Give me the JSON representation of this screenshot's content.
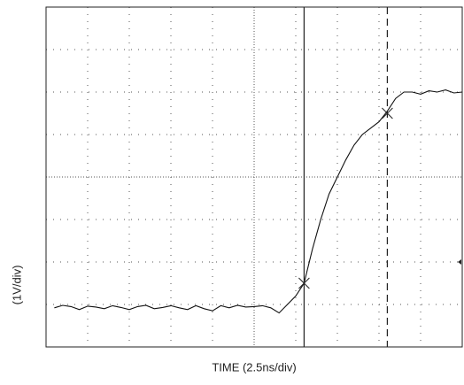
{
  "chart_data": {
    "type": "line",
    "xlabel": "TIME (2.5ns/div)",
    "ylabel": "(1V/div)",
    "x": [
      0.5,
      1,
      1.5,
      2,
      2.5,
      3,
      3.5,
      4,
      4.5,
      5,
      5.5,
      6,
      6.5,
      7,
      7.5,
      8,
      8.5,
      9,
      9.5,
      10,
      10.5,
      11,
      11.5,
      12,
      12.5,
      13,
      13.5,
      14,
      14.5,
      15,
      15.5,
      16,
      16.5,
      17,
      17.5,
      18,
      18.5,
      19,
      19.5,
      20,
      20.5,
      21,
      21.5,
      22,
      22.5,
      23,
      23.5,
      24,
      24.5,
      25
    ],
    "series": [
      {
        "color": "#111111",
        "values": [
          0.92,
          0.98,
          0.95,
          0.88,
          0.96,
          0.94,
          0.9,
          0.97,
          0.93,
          0.88,
          0.95,
          0.98,
          0.9,
          0.93,
          0.97,
          0.92,
          0.88,
          0.97,
          0.9,
          0.85,
          0.97,
          0.92,
          0.98,
          0.94,
          0.95,
          0.97,
          0.92,
          0.8,
          1.0,
          1.2,
          1.5,
          2.3,
          3.0,
          3.6,
          4.0,
          4.4,
          4.75,
          5.0,
          5.15,
          5.3,
          5.55,
          5.85,
          6.0,
          6.0,
          5.95,
          6.03,
          6.0,
          6.05,
          5.98,
          6.0
        ]
      }
    ],
    "cursors": [
      15.5,
      20.5
    ],
    "cursor_levels": [
      1.5,
      5.5
    ],
    "trigger_level": 2,
    "xlim": [
      0,
      25
    ],
    "ylim": [
      0,
      8
    ],
    "xticks": [
      0,
      2.5,
      5,
      7.5,
      10,
      12.5,
      15,
      17.5,
      20,
      22.5,
      25
    ],
    "yticks": [
      0,
      1,
      2,
      3,
      4,
      5,
      6,
      7,
      8
    ],
    "grid": true
  }
}
